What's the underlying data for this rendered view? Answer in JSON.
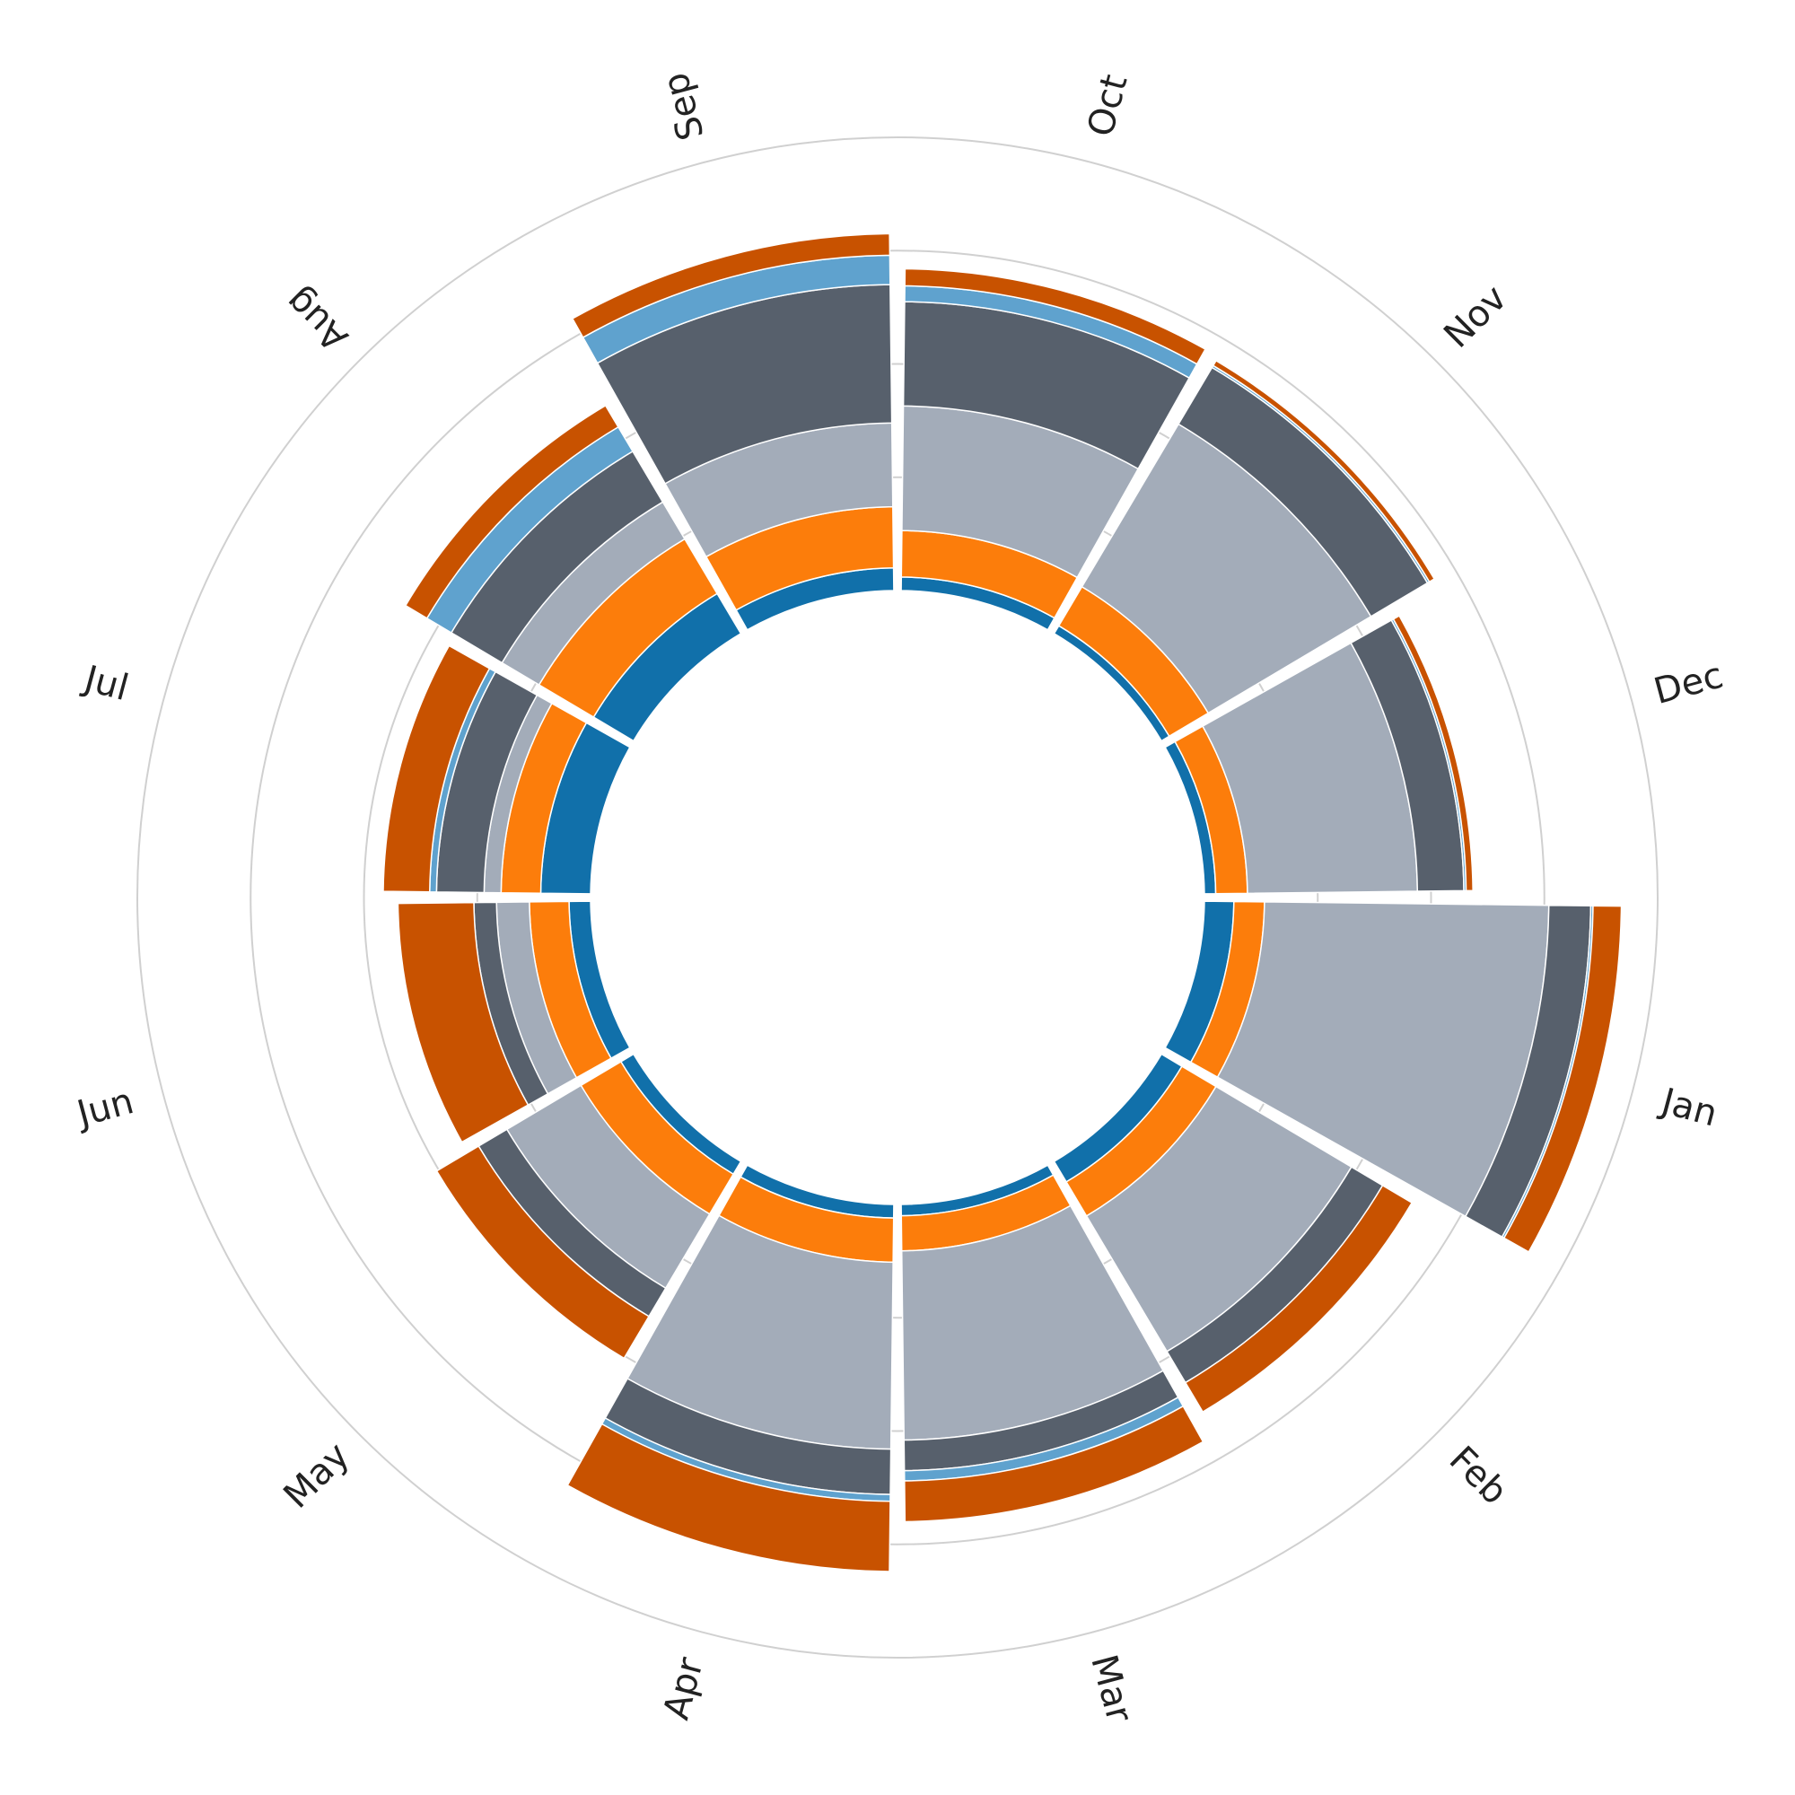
{
  "chart_data": {
    "type": "polar-stacked-bar",
    "categories": [
      "Jan",
      "Feb",
      "Mar",
      "Apr",
      "May",
      "Jun",
      "Jul",
      "Aug",
      "Sep",
      "Oct",
      "Nov",
      "Dec"
    ],
    "series": [
      {
        "color": "#1170aa",
        "values": [
          26,
          21,
          10,
          12,
          13,
          19,
          44,
          41,
          20,
          12,
          8,
          10
        ]
      },
      {
        "color": "#fc7d0b",
        "values": [
          27,
          35,
          31,
          39,
          41,
          35,
          35,
          56,
          54,
          41,
          40,
          28
        ]
      },
      {
        "color": "#a3acb9",
        "values": [
          251,
          139,
          167,
          165,
          76,
          29,
          15,
          38,
          74,
          110,
          167,
          150
        ]
      },
      {
        "color": "#57606c",
        "values": [
          37,
          32,
          27,
          40,
          29,
          20,
          42,
          52,
          122,
          92,
          58,
          41
        ]
      },
      {
        "color": "#5fa2ce",
        "values": [
          2,
          0,
          9,
          6,
          0,
          0,
          6,
          25,
          26,
          14,
          2,
          2
        ]
      },
      {
        "color": "#c85200",
        "values": [
          25,
          30,
          36,
          62,
          43,
          67,
          41,
          22,
          19,
          15,
          5,
          6
        ]
      }
    ],
    "ylim": [
      0,
      400
    ],
    "yticks": [
      100,
      200,
      300,
      400
    ],
    "grid": true
  }
}
